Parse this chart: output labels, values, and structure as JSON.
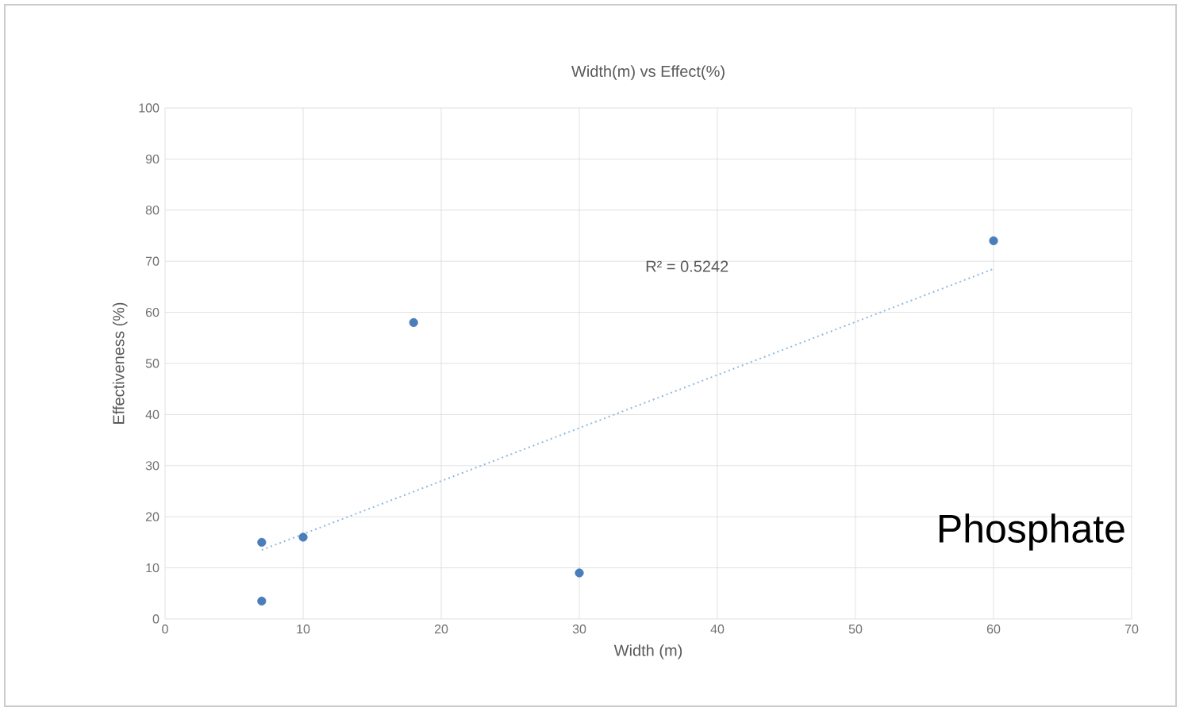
{
  "chart_data": {
    "type": "scatter",
    "title": "Width(m) vs Effect(%)",
    "xlabel": "Width (m)",
    "ylabel": "Effectiveness (%)",
    "xlim": [
      0,
      70
    ],
    "xticks": [
      0,
      10,
      20,
      30,
      40,
      50,
      60,
      70
    ],
    "ylim": [
      0,
      100
    ],
    "yticks": [
      0,
      10,
      20,
      30,
      40,
      50,
      60,
      70,
      80,
      90,
      100
    ],
    "grid": true,
    "marker": "circle",
    "series": [
      {
        "color": "#4a7ebb",
        "x": [
          7,
          7,
          10,
          18,
          30,
          60
        ],
        "values": [
          15,
          3.5,
          16,
          58,
          9,
          74
        ]
      },
      {
        "type": "line",
        "line_style": "dotted",
        "marker": "none",
        "color": "#8fb8e0",
        "x": [
          7,
          60
        ],
        "values": [
          13.5,
          68.5
        ]
      }
    ],
    "annotations": [
      "R² = 0.5242",
      "Phosphate"
    ]
  }
}
